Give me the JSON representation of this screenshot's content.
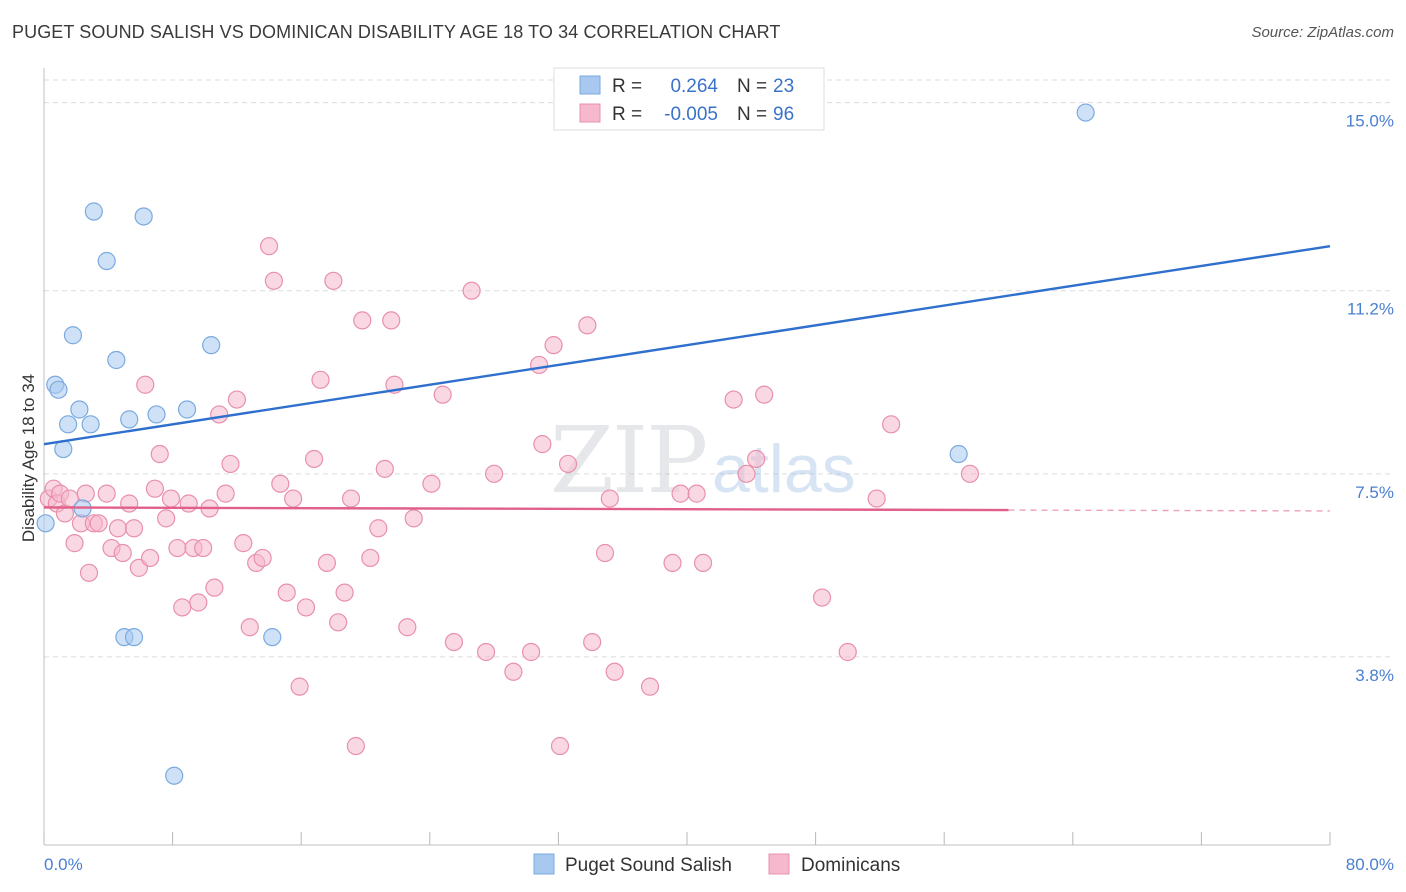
{
  "header": {
    "title": "PUGET SOUND SALISH VS DOMINICAN DISABILITY AGE 18 TO 34 CORRELATION CHART",
    "source": "Source: ZipAtlas.com"
  },
  "watermark": {
    "zip": "ZIP",
    "atlas": "atlas"
  },
  "legend_top": {
    "rows": [
      {
        "r_label": "R =",
        "r_value": "0.264",
        "n_label": "N =",
        "n_value": "23",
        "color": "#a8c8f0"
      },
      {
        "r_label": "R =",
        "r_value": "-0.005",
        "n_label": "N =",
        "n_value": "96",
        "color": "#f6b8cc"
      }
    ]
  },
  "legend_bottom": {
    "items": [
      {
        "label": "Puget Sound Salish",
        "color": "#a8c8f0"
      },
      {
        "label": "Dominicans",
        "color": "#f6b8cc"
      }
    ]
  },
  "chart_data": {
    "type": "scatter",
    "ylabel": "Disability Age 18 to 34",
    "xlim": [
      0,
      80
    ],
    "ylim": [
      0,
      15.7
    ],
    "x_tick_labels": [
      "0.0%",
      "80.0%"
    ],
    "y_ticks": [
      3.8,
      7.5,
      11.2,
      15.0
    ],
    "y_tick_labels": [
      "3.8%",
      "7.5%",
      "11.2%",
      "15.0%"
    ],
    "grid": true,
    "series": [
      {
        "name": "Puget Sound Salish",
        "color": "#a8c8f0",
        "stroke": "#7aaae0",
        "trend_color": "#2f6fcd",
        "trend": {
          "x0": 0,
          "y0": 8.1,
          "x1": 80,
          "y1": 12.1,
          "dash_from": null
        },
        "points": [
          [
            0.1,
            6.5
          ],
          [
            0.7,
            9.3
          ],
          [
            0.9,
            9.2
          ],
          [
            1.2,
            8.0
          ],
          [
            1.5,
            8.5
          ],
          [
            1.8,
            10.3
          ],
          [
            2.2,
            8.8
          ],
          [
            2.4,
            6.8
          ],
          [
            2.9,
            8.5
          ],
          [
            3.1,
            12.8
          ],
          [
            3.9,
            11.8
          ],
          [
            4.5,
            9.8
          ],
          [
            5.0,
            4.2
          ],
          [
            5.3,
            8.6
          ],
          [
            5.6,
            4.2
          ],
          [
            6.2,
            12.7
          ],
          [
            7.0,
            8.7
          ],
          [
            8.9,
            8.8
          ],
          [
            10.4,
            10.1
          ],
          [
            14.2,
            4.2
          ],
          [
            8.1,
            1.4
          ],
          [
            56.9,
            7.9
          ],
          [
            64.8,
            14.8
          ]
        ]
      },
      {
        "name": "Dominicans",
        "color": "#f6b8cc",
        "stroke": "#e890ac",
        "trend_color": "#e0608a",
        "trend": {
          "x0": 0,
          "y0": 6.82,
          "x1": 80,
          "y1": 6.75,
          "dash_from": 60
        },
        "points": [
          [
            0.3,
            7.0
          ],
          [
            0.6,
            7.2
          ],
          [
            0.8,
            6.9
          ],
          [
            1.0,
            7.1
          ],
          [
            1.3,
            6.7
          ],
          [
            1.6,
            7.0
          ],
          [
            1.9,
            6.1
          ],
          [
            2.3,
            6.5
          ],
          [
            2.6,
            7.1
          ],
          [
            2.8,
            5.5
          ],
          [
            3.1,
            6.5
          ],
          [
            3.4,
            6.5
          ],
          [
            3.9,
            7.1
          ],
          [
            4.2,
            6.0
          ],
          [
            4.6,
            6.4
          ],
          [
            4.9,
            5.9
          ],
          [
            5.3,
            6.9
          ],
          [
            5.6,
            6.4
          ],
          [
            5.9,
            5.6
          ],
          [
            6.3,
            9.3
          ],
          [
            6.6,
            5.8
          ],
          [
            6.9,
            7.2
          ],
          [
            7.2,
            7.9
          ],
          [
            7.6,
            6.6
          ],
          [
            7.9,
            7.0
          ],
          [
            8.3,
            6.0
          ],
          [
            8.6,
            4.8
          ],
          [
            9.0,
            6.9
          ],
          [
            9.3,
            6.0
          ],
          [
            9.6,
            4.9
          ],
          [
            9.9,
            6.0
          ],
          [
            10.3,
            6.8
          ],
          [
            10.6,
            5.2
          ],
          [
            10.9,
            8.7
          ],
          [
            11.3,
            7.1
          ],
          [
            11.6,
            7.7
          ],
          [
            12.0,
            9.0
          ],
          [
            12.4,
            6.1
          ],
          [
            12.8,
            4.4
          ],
          [
            13.2,
            5.7
          ],
          [
            13.6,
            5.8
          ],
          [
            14.0,
            12.1
          ],
          [
            14.3,
            11.4
          ],
          [
            14.7,
            7.3
          ],
          [
            15.1,
            5.1
          ],
          [
            15.5,
            7.0
          ],
          [
            15.9,
            3.2
          ],
          [
            16.3,
            4.8
          ],
          [
            16.8,
            7.8
          ],
          [
            17.2,
            9.4
          ],
          [
            17.6,
            5.7
          ],
          [
            18.0,
            11.4
          ],
          [
            18.3,
            4.5
          ],
          [
            18.7,
            5.1
          ],
          [
            19.1,
            7.0
          ],
          [
            19.4,
            2.0
          ],
          [
            19.8,
            10.6
          ],
          [
            20.3,
            5.8
          ],
          [
            20.8,
            6.4
          ],
          [
            21.2,
            7.6
          ],
          [
            21.6,
            10.6
          ],
          [
            21.8,
            9.3
          ],
          [
            22.6,
            4.4
          ],
          [
            23.0,
            6.6
          ],
          [
            24.1,
            7.3
          ],
          [
            24.8,
            9.1
          ],
          [
            25.5,
            4.1
          ],
          [
            26.6,
            11.2
          ],
          [
            27.5,
            3.9
          ],
          [
            28.0,
            7.5
          ],
          [
            29.2,
            3.5
          ],
          [
            30.3,
            3.9
          ],
          [
            30.8,
            9.7
          ],
          [
            31.0,
            8.1
          ],
          [
            31.7,
            10.1
          ],
          [
            32.1,
            2.0
          ],
          [
            32.6,
            7.7
          ],
          [
            33.8,
            10.5
          ],
          [
            34.1,
            4.1
          ],
          [
            34.9,
            5.9
          ],
          [
            35.2,
            7.0
          ],
          [
            35.5,
            3.5
          ],
          [
            37.7,
            3.2
          ],
          [
            39.1,
            5.7
          ],
          [
            39.6,
            7.1
          ],
          [
            40.6,
            7.1
          ],
          [
            41.0,
            5.7
          ],
          [
            42.9,
            9.0
          ],
          [
            43.7,
            7.5
          ],
          [
            44.3,
            7.8
          ],
          [
            44.8,
            9.1
          ],
          [
            48.4,
            5.0
          ],
          [
            50.0,
            3.9
          ],
          [
            51.8,
            7.0
          ],
          [
            52.7,
            8.5
          ],
          [
            57.6,
            7.5
          ]
        ]
      }
    ]
  }
}
